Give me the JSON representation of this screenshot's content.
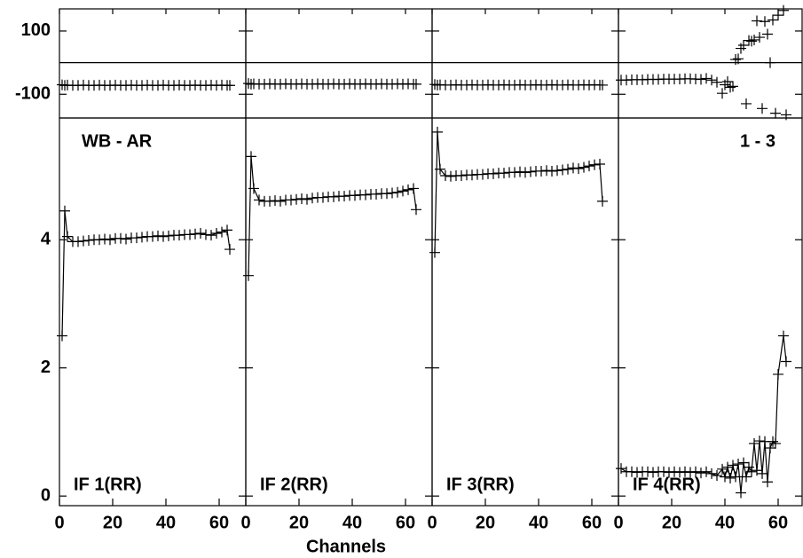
{
  "chart_data": [
    {
      "type": "line",
      "annotation": "WB - AR",
      "label": "IF 1(RR)",
      "xlabel": "Channels",
      "xlim": [
        0,
        70
      ],
      "xticks": [
        0,
        20,
        40,
        60
      ],
      "ylim": [
        -0.15,
        5.9
      ],
      "yticks": [
        0,
        2,
        4
      ],
      "y2lim": [
        -175,
        170
      ],
      "y2ticks": [
        -100,
        100
      ],
      "y2_zero_line": true,
      "x": [
        1,
        2,
        3,
        5,
        7,
        9,
        11,
        13,
        15,
        17,
        19,
        21,
        23,
        25,
        27,
        29,
        31,
        33,
        35,
        37,
        39,
        41,
        43,
        45,
        47,
        49,
        51,
        53,
        55,
        57,
        59,
        61,
        63,
        64
      ],
      "series": [
        {
          "color": "#000000",
          "line": true,
          "values": [
            2.5,
            4.45,
            4.05,
            3.97,
            3.97,
            3.98,
            3.99,
            4.0,
            4.0,
            4.01,
            4.0,
            4.02,
            4.02,
            4.01,
            4.03,
            4.03,
            4.04,
            4.05,
            4.05,
            4.06,
            4.05,
            4.06,
            4.07,
            4.07,
            4.08,
            4.08,
            4.09,
            4.1,
            4.08,
            4.07,
            4.1,
            4.12,
            4.15,
            3.85
          ]
        },
        {
          "color": "#000000",
          "line": true,
          "axis": "y2",
          "values": [
            -70,
            -72,
            -71,
            -72,
            -72,
            -71,
            -72,
            -72,
            -71,
            -72,
            -72,
            -71,
            -72,
            -72,
            -71,
            -72,
            -72,
            -71,
            -72,
            -72,
            -71,
            -72,
            -72,
            -71,
            -72,
            -72,
            -71,
            -72,
            -72,
            -71,
            -72,
            -71,
            -72,
            -72
          ]
        }
      ]
    },
    {
      "type": "line",
      "label": "IF 2(RR)",
      "xlim": [
        0,
        70
      ],
      "xticks": [
        0,
        20,
        40,
        60
      ],
      "x": [
        1,
        2,
        3,
        5,
        7,
        9,
        11,
        13,
        15,
        17,
        19,
        21,
        23,
        25,
        27,
        29,
        31,
        33,
        35,
        37,
        39,
        41,
        43,
        45,
        47,
        49,
        51,
        53,
        55,
        57,
        59,
        61,
        63,
        64
      ],
      "series": [
        {
          "color": "#000000",
          "line": true,
          "values": [
            3.44,
            5.3,
            4.8,
            4.62,
            4.6,
            4.6,
            4.61,
            4.6,
            4.62,
            4.62,
            4.63,
            4.64,
            4.63,
            4.65,
            4.66,
            4.66,
            4.67,
            4.67,
            4.68,
            4.68,
            4.69,
            4.69,
            4.7,
            4.7,
            4.71,
            4.71,
            4.72,
            4.72,
            4.73,
            4.74,
            4.76,
            4.78,
            4.8,
            4.47
          ]
        },
        {
          "color": "#000000",
          "line": true,
          "axis": "y2",
          "values": [
            -66,
            -68,
            -67,
            -68,
            -68,
            -67,
            -68,
            -68,
            -67,
            -68,
            -68,
            -67,
            -68,
            -68,
            -67,
            -68,
            -68,
            -67,
            -68,
            -68,
            -67,
            -68,
            -68,
            -67,
            -68,
            -68,
            -67,
            -68,
            -68,
            -67,
            -68,
            -67,
            -68,
            -68
          ]
        }
      ]
    },
    {
      "type": "line",
      "label": "IF 3(RR)",
      "xlim": [
        0,
        70
      ],
      "xticks": [
        0,
        20,
        40,
        60
      ],
      "x": [
        1,
        2,
        3,
        5,
        7,
        9,
        11,
        13,
        15,
        17,
        19,
        21,
        23,
        25,
        27,
        29,
        31,
        33,
        35,
        37,
        39,
        41,
        43,
        45,
        47,
        49,
        51,
        53,
        55,
        57,
        59,
        61,
        63,
        64
      ],
      "series": [
        {
          "color": "#000000",
          "line": true,
          "values": [
            3.8,
            5.68,
            5.1,
            5.0,
            4.99,
            5.0,
            5.0,
            5.01,
            5.01,
            5.02,
            5.02,
            5.03,
            5.03,
            5.04,
            5.04,
            5.05,
            5.05,
            5.06,
            5.05,
            5.06,
            5.07,
            5.07,
            5.08,
            5.07,
            5.08,
            5.09,
            5.1,
            5.12,
            5.11,
            5.13,
            5.15,
            5.17,
            5.18,
            4.6
          ]
        },
        {
          "color": "#000000",
          "line": true,
          "axis": "y2",
          "values": [
            -69,
            -71,
            -70,
            -71,
            -71,
            -70,
            -71,
            -71,
            -70,
            -71,
            -71,
            -70,
            -71,
            -71,
            -70,
            -71,
            -71,
            -70,
            -71,
            -71,
            -70,
            -71,
            -71,
            -70,
            -71,
            -71,
            -70,
            -71,
            -71,
            -70,
            -71,
            -70,
            -71,
            -71
          ]
        }
      ]
    },
    {
      "type": "line",
      "annotation": "1 - 3",
      "label": "IF 4(RR)",
      "xlim": [
        0,
        70
      ],
      "xticks": [
        0,
        20,
        40,
        60
      ],
      "x": [
        1,
        3,
        5,
        7,
        9,
        11,
        13,
        15,
        17,
        19,
        21,
        23,
        25,
        27,
        29,
        31,
        33,
        35,
        37,
        39,
        40,
        41,
        42,
        43,
        44,
        45,
        46,
        47,
        48,
        49,
        50,
        51,
        52,
        53,
        54,
        55,
        56,
        57,
        58,
        59,
        60,
        62,
        63
      ],
      "series": [
        {
          "color": "#000000",
          "line": true,
          "values": [
            0.43,
            0.38,
            0.38,
            0.37,
            0.38,
            0.38,
            0.37,
            0.38,
            0.38,
            0.37,
            0.38,
            0.37,
            0.38,
            0.37,
            0.38,
            0.36,
            0.38,
            0.35,
            0.32,
            0.42,
            0.3,
            0.45,
            0.28,
            0.48,
            0.3,
            0.5,
            0.05,
            0.52,
            0.3,
            0.45,
            0.38,
            0.82,
            0.4,
            0.86,
            0.35,
            0.85,
            0.22,
            0.75,
            0.85,
            0.82,
            1.9,
            2.5,
            2.1
          ]
        },
        {
          "color": "#000000",
          "line": false,
          "axis": "y2",
          "values": [
            -55,
            -55,
            -54,
            -54,
            -54,
            -53,
            -53,
            -53,
            -52,
            -52,
            -52,
            -52,
            -51,
            -51,
            -52,
            -53,
            -50,
            -55,
            -62,
            -97,
            -70,
            -60,
            -78,
            -75,
            10,
            12,
            45,
            55,
            -130,
            70,
            68,
            72,
            132,
            80,
            -145,
            130,
            90,
            0,
            135,
            -160,
            150,
            165,
            -165
          ]
        }
      ]
    }
  ]
}
